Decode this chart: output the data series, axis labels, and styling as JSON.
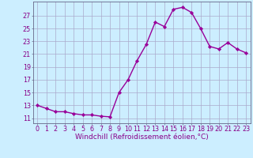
{
  "x": [
    0,
    1,
    2,
    3,
    4,
    5,
    6,
    7,
    8,
    9,
    10,
    11,
    12,
    13,
    14,
    15,
    16,
    17,
    18,
    19,
    20,
    21,
    22,
    23
  ],
  "y": [
    13.0,
    12.5,
    12.0,
    12.0,
    11.7,
    11.5,
    11.5,
    11.3,
    11.2,
    15.0,
    17.0,
    20.0,
    22.5,
    26.0,
    25.3,
    28.0,
    28.3,
    27.5,
    25.0,
    22.2,
    21.8,
    22.8,
    21.8,
    21.2
  ],
  "line_color": "#990099",
  "marker": "D",
  "marker_size": 2.2,
  "bg_color": "#cceeff",
  "grid_color": "#aaaacc",
  "xlabel": "Windchill (Refroidissement éolien,°C)",
  "xlabel_color": "#880088",
  "xlabel_fontsize": 6.5,
  "ytick_vals": [
    11,
    13,
    15,
    17,
    19,
    21,
    23,
    25,
    27
  ],
  "ylim": [
    10.2,
    29.2
  ],
  "xlim": [
    -0.5,
    23.5
  ],
  "tick_color": "#880088",
  "tick_fontsize": 5.8,
  "border_color": "#666688",
  "linewidth": 1.0
}
